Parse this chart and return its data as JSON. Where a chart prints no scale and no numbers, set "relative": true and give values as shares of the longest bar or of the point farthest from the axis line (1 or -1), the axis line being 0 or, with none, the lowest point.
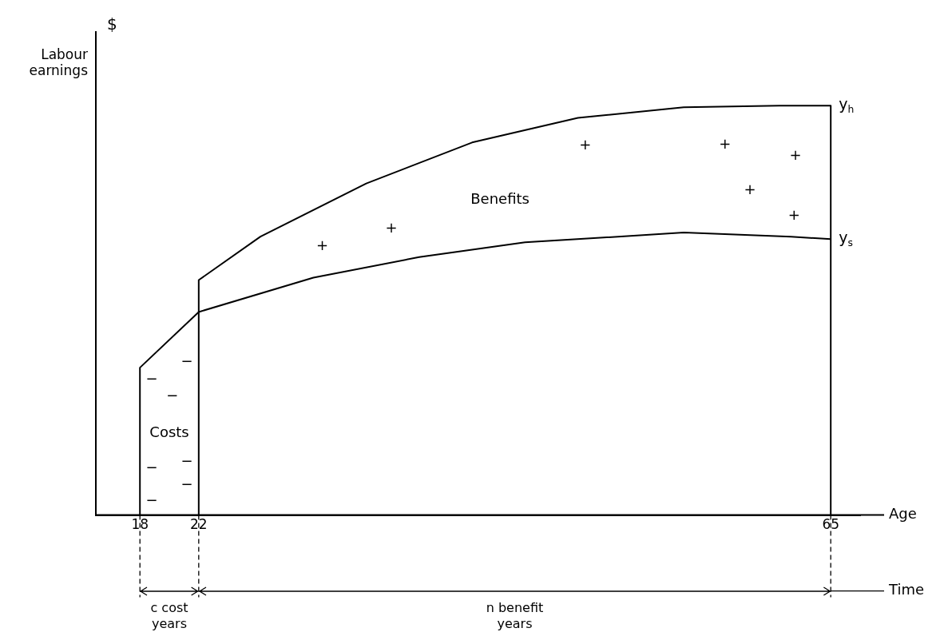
{
  "chart_data": {
    "type": "line",
    "relative": true,
    "xlabel": "Age",
    "ylabel": "Labour earnings",
    "xlim": [
      15,
      67
    ],
    "xticks": [
      18,
      22,
      65
    ],
    "tick_labels": "x",
    "grid": false,
    "legend": false,
    "marker": "none",
    "line_style": "solid",
    "series": [
      {
        "name": "y$_{h}$",
        "color": "#000000",
        "x": [
          22,
          22,
          26.2,
          33.4,
          40.6,
          47.8,
          55,
          61.5,
          65,
          65
        ],
        "values": [
          0,
          0.574,
          0.68,
          0.81,
          0.91,
          0.97,
          0.996,
          1.0,
          1.0,
          0
        ]
      },
      {
        "name": "y$_{s}$",
        "color": "#000000",
        "x": [
          18,
          18,
          22,
          29.8,
          37,
          44.2,
          55,
          62.3,
          65
        ],
        "values": [
          0,
          0.36,
          0.496,
          0.58,
          0.63,
          0.666,
          0.69,
          0.68,
          0.674
        ]
      }
    ],
    "annotations": [
      "$",
      "Benefits",
      "Costs",
      "+",
      "+",
      "+",
      "+",
      "+",
      "+",
      "+",
      "−",
      "−",
      "−",
      "−",
      "−",
      "−",
      "−",
      "c cost years",
      "n benefit years",
      "Time"
    ]
  }
}
